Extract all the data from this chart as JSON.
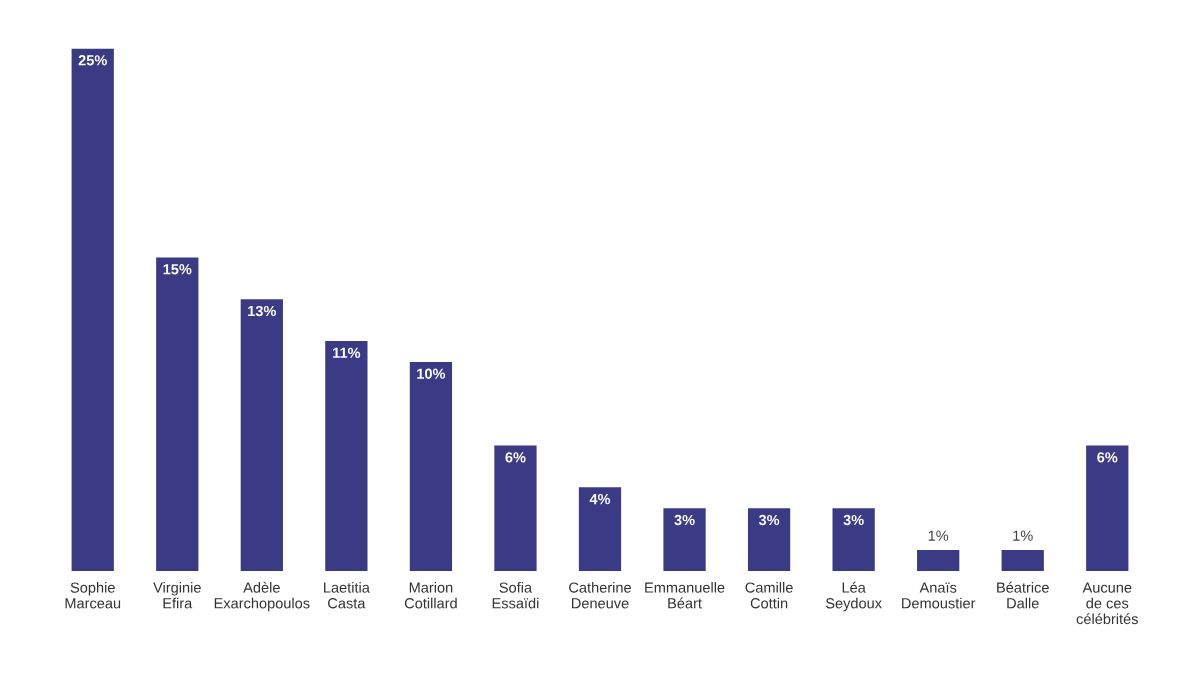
{
  "chart_data": {
    "type": "bar",
    "categories": [
      "Sophie\nMarceau",
      "Virginie\nEfira",
      "Adèle\nExarchopoulos",
      "Laetitia\nCasta",
      "Marion\nCotillard",
      "Sofia\nEssaïdi",
      "Catherine\nDeneuve",
      "Emmanuelle\nBéart",
      "Camille\nCottin",
      "Léa\nSeydoux",
      "Anaïs\nDemoustier",
      "Béatrice\nDalle",
      "Aucune\nde ces\ncélébrités"
    ],
    "values": [
      25,
      15,
      13,
      11,
      10,
      6,
      4,
      3,
      3,
      3,
      1,
      1,
      6
    ],
    "value_labels": [
      "25%",
      "15%",
      "13%",
      "11%",
      "10%",
      "6%",
      "4%",
      "3%",
      "3%",
      "3%",
      "1%",
      "1%",
      "6%"
    ],
    "color": "#3b3a85",
    "grid": false,
    "legend": false
  }
}
